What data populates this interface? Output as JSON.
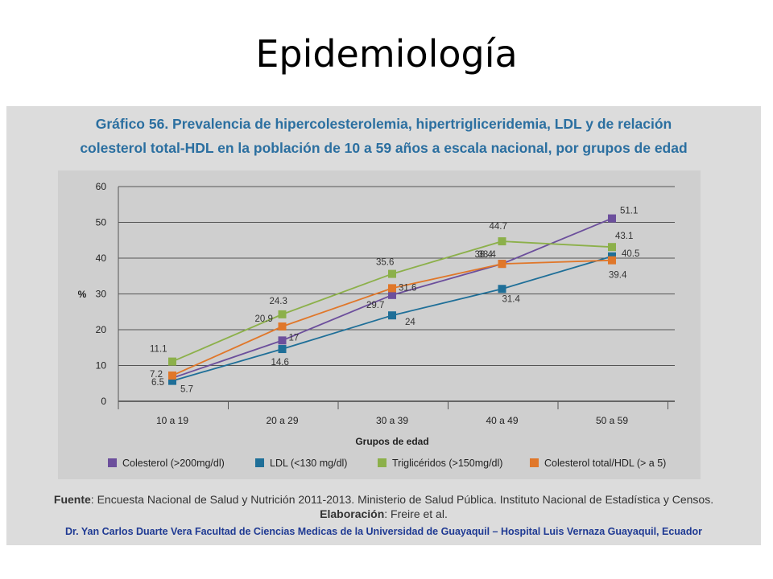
{
  "slide": {
    "title": "Epidemiología"
  },
  "chart_heading": {
    "line1": "Gráfico 56. Prevalencia de hipercolesterolemia, hipertrigliceridemia, LDL y de relación",
    "line2": "colesterol total-HDL en la población de 10 a 59 años a escala nacional, por grupos de edad"
  },
  "chart_data": {
    "type": "line",
    "categories": [
      "10 a 19",
      "20 a 29",
      "30 a 39",
      "40 a 49",
      "50 a 59"
    ],
    "xlabel": "Grupos de edad",
    "ylabel": "%",
    "yticks": [
      "0",
      "10",
      "20",
      "30",
      "40",
      "50",
      "60"
    ],
    "ylim": [
      0,
      60
    ],
    "grid": true,
    "legend_position": "bottom",
    "series": [
      {
        "name": "Colesterol (>200mg/dl)",
        "color": "#6c4f9c",
        "values": [
          6.5,
          17,
          29.7,
          38.4,
          51.1
        ],
        "labels": [
          "6.5",
          "17",
          "29.7",
          "38.4",
          "51.1"
        ]
      },
      {
        "name": "LDL (<130 mg/dl)",
        "color": "#1f6f98",
        "values": [
          5.7,
          14.6,
          24,
          31.4,
          40.5
        ],
        "labels": [
          "5.7",
          "14.6",
          "24",
          "31.4",
          "40.5"
        ]
      },
      {
        "name": "Triglicéridos (>150mg/dl)",
        "color": "#8cb04a",
        "values": [
          11.1,
          24.3,
          35.6,
          44.7,
          43.1
        ],
        "labels": [
          "11.1",
          "24.3",
          "35.6",
          "44.7",
          "43.1"
        ]
      },
      {
        "name": "Colesterol total/HDL (> a 5)",
        "color": "#e0772a",
        "values": [
          7.2,
          20.9,
          31.6,
          38.4,
          39.4
        ],
        "labels": [
          "7.2",
          "20.9",
          "31.6",
          "38.4",
          "39.4"
        ]
      }
    ]
  },
  "footer": {
    "source_label": "Fuente",
    "source_text": ": Encuesta Nacional de Salud y Nutrición 2011-2013. Ministerio de Salud Pública. Instituto Nacional de Estadística y Censos.",
    "elab_label": "Elaboración",
    "elab_text": ": Freire et al.",
    "author": "Dr. Yan Carlos Duarte Vera   Facultad de Ciencias Medicas de la Universidad de Guayaquil – Hospital Luis Vernaza Guayaquil, Ecuador"
  }
}
